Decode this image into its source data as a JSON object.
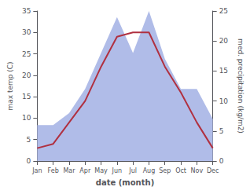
{
  "chart_data": {
    "type": "line",
    "xlabel": "date (month)",
    "ylabel": "max temp (C)",
    "y2label": "med. precipitation (kg/m2)",
    "categories": [
      "Jan",
      "Feb",
      "Mar",
      "Apr",
      "May",
      "Jun",
      "Jul",
      "Aug",
      "Sep",
      "Oct",
      "Nov",
      "Dec"
    ],
    "series": [
      {
        "type": "area",
        "axis": "y2",
        "color": "#b0bce8",
        "values": [
          6,
          6,
          8,
          12,
          18,
          24,
          18,
          25,
          17,
          12,
          12,
          7
        ]
      },
      {
        "type": "line",
        "color": "#b03040",
        "values": [
          3,
          4,
          9,
          14,
          22,
          29,
          30,
          30,
          22,
          16,
          9,
          3
        ]
      }
    ],
    "ylim": [
      0,
      35
    ],
    "yticks": [
      0,
      5,
      10,
      15,
      20,
      25,
      30,
      35
    ],
    "y2lim": [
      0,
      25
    ],
    "y2ticks": [
      0,
      5,
      10,
      15,
      20,
      25
    ],
    "grid": false
  }
}
